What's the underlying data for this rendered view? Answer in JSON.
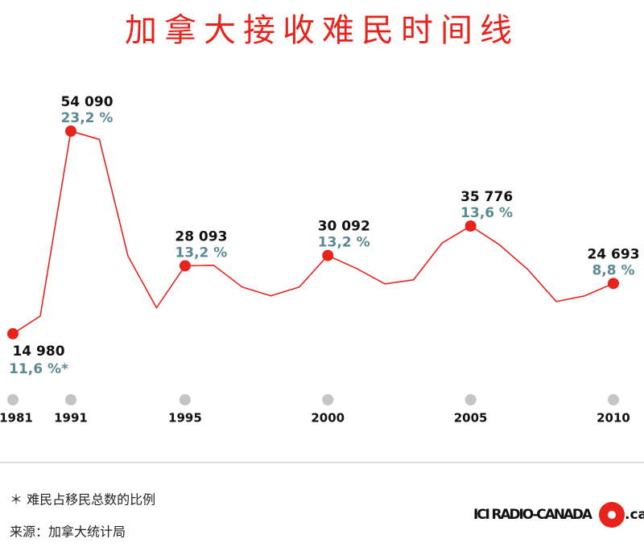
{
  "chart_data": {
    "type": "line",
    "title": "加拿大接收难民时间线",
    "categories": [
      "1981",
      null,
      "1991",
      null,
      null,
      null,
      "1995",
      null,
      null,
      null,
      null,
      "2000",
      null,
      null,
      null,
      null,
      "2005",
      null,
      null,
      null,
      null,
      "2010"
    ],
    "series": [
      {
        "color": "#e8231c",
        "values": [
          14980,
          18400,
          54090,
          52500,
          30000,
          20000,
          28093,
          28200,
          24000,
          22300,
          24000,
          30092,
          27600,
          24600,
          25400,
          32500,
          35776,
          32200,
          27400,
          21200,
          22300,
          24693
        ],
        "value_labels": [
          "14 980",
          null,
          "54 090",
          null,
          null,
          null,
          "28 093",
          null,
          null,
          null,
          null,
          "30 092",
          null,
          null,
          null,
          null,
          "35 776",
          null,
          null,
          null,
          null,
          "24 693"
        ],
        "share_labels": [
          "11,6 %*",
          null,
          "23,2 %",
          null,
          null,
          null,
          "13,2 %",
          null,
          null,
          null,
          null,
          "13,2 %",
          null,
          null,
          null,
          null,
          "13,6 %",
          null,
          null,
          null,
          null,
          "8,8 %"
        ]
      }
    ],
    "ylim": [
      10000,
      60000
    ],
    "footnote": "＊ 难民占移民总数的比例",
    "source": "来源：加拿大统计局",
    "logo": "ICI RADIO-CANADA",
    "logo_suffix": ".ca"
  }
}
